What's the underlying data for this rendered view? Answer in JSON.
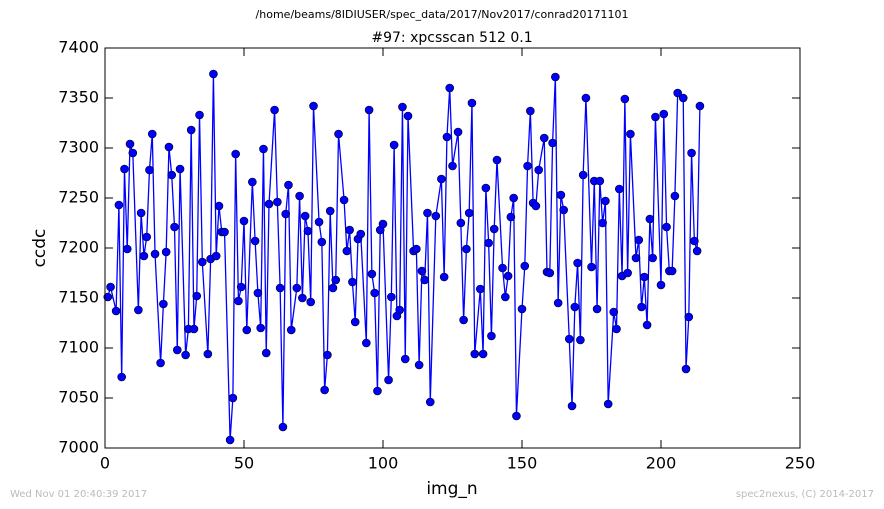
{
  "chart_data": {
    "type": "line",
    "suptitle": "/home/beams/8IDIUSER/spec_data/2017/Nov2017/conrad20171101",
    "title": "#97: xpcsscan 512 0.1",
    "xlabel": "img_n",
    "ylabel": "ccdc",
    "footer_left": "Wed Nov 01 20:40:39 2017",
    "footer_right": "spec2nexus, (C) 2014-2017",
    "color": "#0000ff",
    "marker": "circle",
    "x": [
      1,
      2,
      4,
      5,
      6,
      7,
      8,
      9,
      10,
      12,
      13,
      14,
      15,
      16,
      17,
      18,
      20,
      21,
      22,
      23,
      24,
      25,
      26,
      27,
      29,
      30,
      31,
      32,
      33,
      34,
      35,
      37,
      38,
      39,
      40,
      41,
      42,
      43,
      45,
      46,
      47,
      48,
      49,
      50,
      51,
      53,
      54,
      55,
      56,
      57,
      58,
      59,
      61,
      62,
      63,
      64,
      65,
      66,
      67,
      69,
      70,
      71,
      72,
      73,
      74,
      75,
      77,
      78,
      79,
      80,
      81,
      82,
      83,
      84,
      86,
      87,
      88,
      89,
      90,
      91,
      92,
      94,
      95,
      96,
      97,
      98,
      99,
      100,
      102,
      103,
      104,
      105,
      106,
      107,
      108,
      109,
      111,
      112,
      113,
      114,
      115,
      116,
      117,
      119,
      121,
      122,
      123,
      124,
      125,
      127,
      128,
      129,
      130,
      131,
      132,
      133,
      135,
      136,
      137,
      138,
      139,
      140,
      141,
      143,
      144,
      145,
      146,
      147,
      148,
      150,
      151,
      152,
      153,
      154,
      155,
      156,
      158,
      159,
      160,
      161,
      162,
      163,
      164,
      165,
      167,
      168,
      169,
      170,
      171,
      172,
      173,
      175,
      176,
      177,
      178,
      179,
      180,
      181,
      183,
      184,
      185,
      186,
      187,
      188,
      189,
      191,
      192,
      193,
      194,
      195,
      196,
      197,
      198,
      200,
      201,
      202,
      203,
      204,
      205,
      206,
      208,
      209,
      210,
      211,
      212,
      213,
      214
    ],
    "values": [
      7151,
      7161,
      7137,
      7243,
      7071,
      7279,
      7199,
      7304,
      7295,
      7138,
      7235,
      7192,
      7211,
      7278,
      7314,
      7194,
      7085,
      7144,
      7196,
      7301,
      7273,
      7221,
      7098,
      7279,
      7093,
      7119,
      7318,
      7119,
      7152,
      7333,
      7186,
      7094,
      7189,
      7374,
      7192,
      7242,
      7216,
      7216,
      7008,
      7050,
      7294,
      7147,
      7161,
      7227,
      7118,
      7266,
      7207,
      7155,
      7120,
      7299,
      7095,
      7244,
      7338,
      7246,
      7160,
      7021,
      7234,
      7263,
      7118,
      7160,
      7252,
      7150,
      7232,
      7217,
      7146,
      7342,
      7226,
      7206,
      7058,
      7093,
      7237,
      7160,
      7168,
      7314,
      7248,
      7197,
      7218,
      7166,
      7126,
      7209,
      7214,
      7105,
      7338,
      7174,
      7155,
      7057,
      7218,
      7224,
      7068,
      7151,
      7303,
      7132,
      7138,
      7341,
      7089,
      7332,
      7197,
      7199,
      7083,
      7177,
      7168,
      7235,
      7046,
      7232,
      7269,
      7171,
      7311,
      7360,
      7282,
      7316,
      7225,
      7128,
      7199,
      7235,
      7345,
      7094,
      7159,
      7094,
      7260,
      7205,
      7112,
      7219,
      7288,
      7180,
      7151,
      7172,
      7231,
      7250,
      7032,
      7139,
      7182,
      7282,
      7337,
      7245,
      7242,
      7278,
      7310,
      7176,
      7175,
      7305,
      7371,
      7145,
      7253,
      7238,
      7109,
      7042,
      7141,
      7185,
      7108,
      7273,
      7350,
      7181,
      7267,
      7139,
      7267,
      7225,
      7247,
      7044,
      7136,
      7119,
      7259,
      7172,
      7349,
      7175,
      7314,
      7190,
      7208,
      7141,
      7171,
      7123,
      7229,
      7190,
      7331,
      7163,
      7334,
      7221,
      7177,
      7177,
      7252,
      7355,
      7350,
      7079,
      7131,
      7295,
      7207,
      7197,
      7342
    ],
    "xlim": [
      0,
      250
    ],
    "xticks": [
      0,
      50,
      100,
      150,
      200,
      250
    ],
    "ylim": [
      7000,
      7400
    ],
    "yticks": [
      7000,
      7050,
      7100,
      7150,
      7200,
      7250,
      7300,
      7350,
      7400
    ]
  }
}
